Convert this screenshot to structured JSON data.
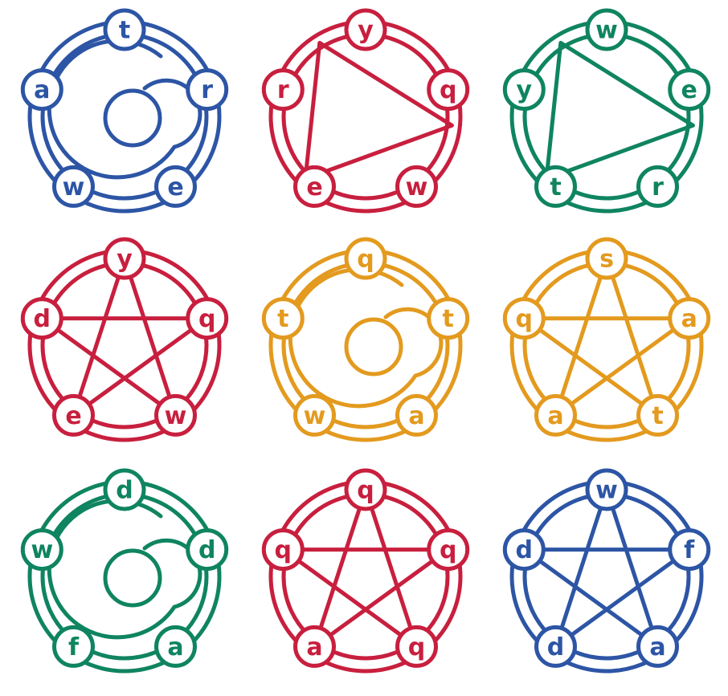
{
  "palette": {
    "blue": "#2d55a5",
    "red": "#c81f3e",
    "green": "#0f8460",
    "orange": "#e39a1e"
  },
  "puzzles": [
    {
      "color": "blue",
      "inner": "spiral",
      "letters": [
        "t",
        "r",
        "e",
        "w",
        "a"
      ]
    },
    {
      "color": "red",
      "inner": "triangle",
      "letters": [
        "y",
        "q",
        "w",
        "e",
        "r"
      ]
    },
    {
      "color": "green",
      "inner": "triangle",
      "letters": [
        "w",
        "e",
        "r",
        "t",
        "y"
      ]
    },
    {
      "color": "red",
      "inner": "star",
      "letters": [
        "y",
        "q",
        "w",
        "e",
        "d"
      ]
    },
    {
      "color": "orange",
      "inner": "spiral",
      "letters": [
        "q",
        "t",
        "a",
        "w",
        "t"
      ]
    },
    {
      "color": "orange",
      "inner": "star",
      "letters": [
        "s",
        "a",
        "t",
        "a",
        "q"
      ]
    },
    {
      "color": "green",
      "inner": "spiral",
      "letters": [
        "d",
        "d",
        "a",
        "f",
        "w"
      ]
    },
    {
      "color": "red",
      "inner": "star",
      "letters": [
        "q",
        "q",
        "q",
        "a",
        "q"
      ]
    },
    {
      "color": "blue",
      "inner": "star",
      "letters": [
        "w",
        "f",
        "a",
        "d",
        "d"
      ]
    }
  ]
}
